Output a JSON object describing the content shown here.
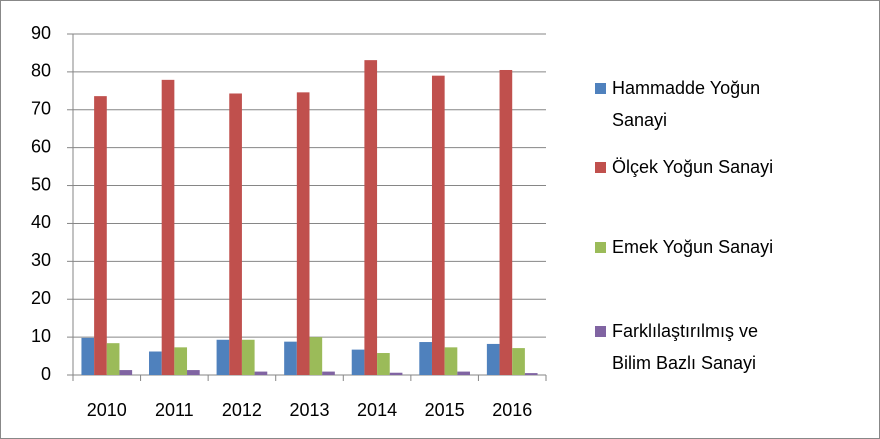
{
  "chart_data": {
    "type": "bar",
    "categories": [
      "2010",
      "2011",
      "2012",
      "2013",
      "2014",
      "2015",
      "2016"
    ],
    "series": [
      {
        "name": "Hammadde Yoğun Sanayi",
        "color": "#4f81bd",
        "values": [
          9.8,
          6.2,
          9.3,
          8.8,
          6.7,
          8.7,
          8.2
        ]
      },
      {
        "name": "Ölçek Yoğun Sanayi",
        "color": "#c0504d",
        "values": [
          73.6,
          77.9,
          74.3,
          74.6,
          83.1,
          79.0,
          80.5
        ]
      },
      {
        "name": "Emek Yoğun Sanayi",
        "color": "#9bbb59",
        "values": [
          8.4,
          7.3,
          9.3,
          10.0,
          5.8,
          7.3,
          7.1
        ]
      },
      {
        "name": "Farklılaştırılmış ve Bilim Bazlı Sanayi",
        "color": "#8064a2",
        "values": [
          1.3,
          1.3,
          0.9,
          0.9,
          0.6,
          0.9,
          0.5
        ]
      }
    ],
    "ylim": [
      0,
      90
    ],
    "yticks": [
      0,
      10,
      20,
      30,
      40,
      50,
      60,
      70,
      80,
      90
    ],
    "grid": true,
    "legend": "right"
  }
}
